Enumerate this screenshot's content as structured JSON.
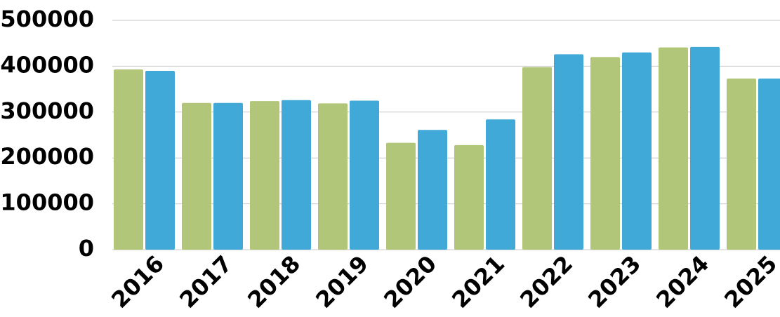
{
  "chart_data": {
    "type": "bar",
    "title": "",
    "xlabel": "",
    "ylabel": "",
    "categories": [
      "2016",
      "2017",
      "2018",
      "2019",
      "2020",
      "2021",
      "2022",
      "2023",
      "2024",
      "2025"
    ],
    "series": [
      {
        "color": "#b1c678",
        "values": [
          393000,
          320000,
          324000,
          319000,
          233000,
          228000,
          398000,
          420000,
          441000,
          373000
        ]
      },
      {
        "color": "#41a9d7",
        "values": [
          390000,
          320000,
          326000,
          325000,
          261000,
          284000,
          426000,
          430000,
          442000,
          373000
        ]
      }
    ],
    "ylim": [
      0,
      500000
    ],
    "yticks": [
      "0",
      "100000",
      "200000",
      "300000",
      "400000",
      "500000"
    ],
    "grid": true,
    "legend": "none"
  }
}
